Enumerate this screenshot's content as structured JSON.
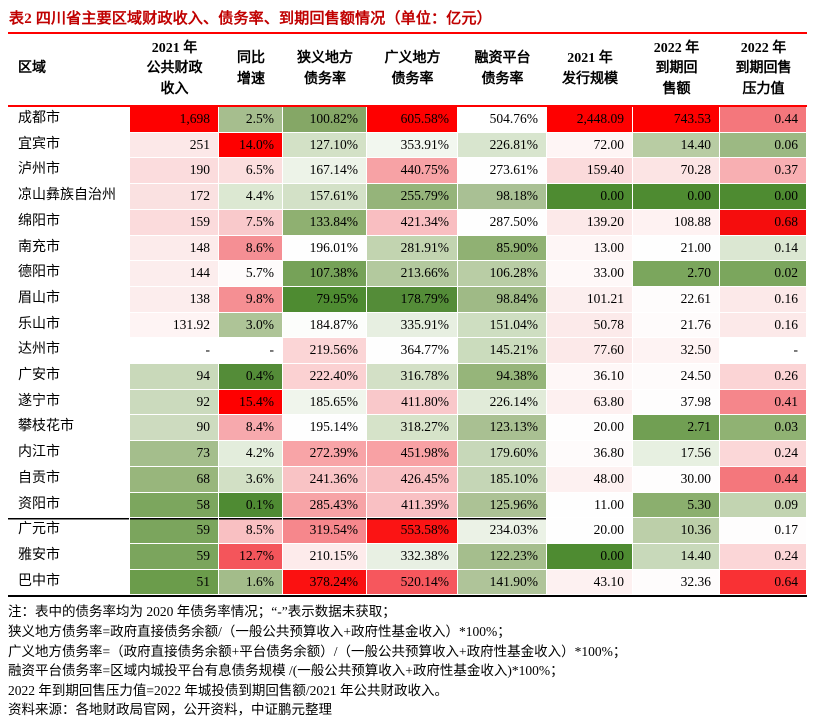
{
  "title": "表2 四川省主要区域财政收入、债务率、到期回售额情况（单位：亿元）",
  "styles": {
    "title_color": "#C00000",
    "rule_red": "#FE0000",
    "table_bottom_rule": "#000000",
    "scale_max_red": "#FE0000",
    "scale_mid_white": "#FFFFFF",
    "scale_min_green": "#4E8B31"
  },
  "table": {
    "headers": [
      {
        "label": "区域"
      },
      {
        "label": "2021 年\n公共财政\n收入"
      },
      {
        "label": "同比\n增速"
      },
      {
        "label": "狭义地方\n债务率"
      },
      {
        "label": "广义地方\n债务率"
      },
      {
        "label": "融资平台\n债务率"
      },
      {
        "label": "2021 年\n发行规模"
      },
      {
        "label": "2022 年\n到期回\n售额"
      },
      {
        "label": "2022 年\n到期回售\n压力值"
      }
    ],
    "rows": [
      {
        "region": "成都市",
        "values": [
          "1,698",
          "2.5%",
          "100.82%",
          "605.58%",
          "504.76%",
          "2,448.09",
          "743.53",
          "0.44"
        ],
        "colors": [
          "#FE0000",
          "#A6BE8E",
          "#85A766",
          "#FE0000",
          "#FFFFFF",
          "#FE0000",
          "#FE0000",
          "#F4777C"
        ]
      },
      {
        "region": "宜宾市",
        "values": [
          "251",
          "14.0%",
          "127.10%",
          "353.91%",
          "226.81%",
          "72.00",
          "14.40",
          "0.06"
        ],
        "colors": [
          "#FCE8E8",
          "#FE0000",
          "#D3E1C6",
          "#F2F7EF",
          "#D8E5CE",
          "#FEF5F5",
          "#B8CCA3",
          "#9CB983"
        ]
      },
      {
        "region": "泸州市",
        "values": [
          "190",
          "6.5%",
          "167.14%",
          "440.75%",
          "273.61%",
          "159.40",
          "70.28",
          "0.37"
        ],
        "colors": [
          "#FBDCDD",
          "#FBDEDE",
          "#EDF3E8",
          "#F7A2A5",
          "#FEFEFE",
          "#FBDADB",
          "#FCE4E4",
          "#F8AFB2"
        ]
      },
      {
        "region": "凉山彝族自治州",
        "values": [
          "172",
          "4.4%",
          "157.61%",
          "255.79%",
          "98.18%",
          "0.00",
          "0.00",
          "0.00"
        ],
        "colors": [
          "#FAE1E1",
          "#DCE8D2",
          "#D3E1C7",
          "#95B47A",
          "#A9C094",
          "#4E8B31",
          "#4E8B31",
          "#4E8B31"
        ]
      },
      {
        "region": "绵阳市",
        "values": [
          "159",
          "7.5%",
          "133.84%",
          "421.34%",
          "287.50%",
          "139.20",
          "108.88",
          "0.68"
        ],
        "colors": [
          "#FBDBDC",
          "#F9C9CB",
          "#8FB071",
          "#F9BEC1",
          "#FEFEFE",
          "#FCE9E9",
          "#FEF2F2",
          "#F50D0D"
        ]
      },
      {
        "region": "南充市",
        "values": [
          "148",
          "8.6%",
          "196.01%",
          "281.91%",
          "85.90%",
          "13.00",
          "21.00",
          "0.14"
        ],
        "colors": [
          "#FCEBEB",
          "#F58F94",
          "#FEFEFE",
          "#C2D4B0",
          "#90B173",
          "#FEF6F6",
          "#FEFEFE",
          "#DBE7D2"
        ]
      },
      {
        "region": "德阳市",
        "values": [
          "144",
          "5.7%",
          "107.38%",
          "213.66%",
          "106.28%",
          "33.00",
          "2.70",
          "0.02"
        ],
        "colors": [
          "#FCEDED",
          "#FEFBFB",
          "#76A258",
          "#B3C99E",
          "#B9CDA5",
          "#FEF8F8",
          "#7BA65D",
          "#7BA65D"
        ]
      },
      {
        "region": "眉山市",
        "values": [
          "138",
          "9.8%",
          "79.95%",
          "178.79%",
          "98.84%",
          "101.21",
          "22.61",
          "0.16"
        ],
        "colors": [
          "#FCEDED",
          "#F58F93",
          "#4E8B31",
          "#548C38",
          "#9FBA86",
          "#FCEEEE",
          "#FEFCFC",
          "#FCE9E9"
        ]
      },
      {
        "region": "乐山市",
        "values": [
          "131.92",
          "3.0%",
          "184.87%",
          "335.91%",
          "151.04%",
          "50.78",
          "21.76",
          "0.16"
        ],
        "colors": [
          "#FEF4F4",
          "#AEC497",
          "#FCFDFB",
          "#E7EFE1",
          "#CEDEC1",
          "#FCEAEA",
          "#FEFBFB",
          "#FCE9E9"
        ]
      },
      {
        "region": "达州市",
        "values": [
          "-",
          "-",
          "219.56%",
          "364.77%",
          "145.21%",
          "77.60",
          "32.50",
          "-"
        ],
        "colors": [
          "#FFFFFF",
          "#FFFFFF",
          "#FBD5D6",
          "#FEFEFE",
          "#CBDCBD",
          "#FCE9E9",
          "#FEF3F3",
          "#FFFFFF"
        ]
      },
      {
        "region": "广安市",
        "values": [
          "94",
          "0.4%",
          "222.40%",
          "316.78%",
          "94.38%",
          "36.10",
          "24.50",
          "0.26"
        ],
        "colors": [
          "#C9D9BA",
          "#548C38",
          "#FBD1D2",
          "#D3E0C6",
          "#96B57A",
          "#FEF7F7",
          "#FEFBFB",
          "#FBD4D5"
        ]
      },
      {
        "region": "遂宁市",
        "values": [
          "92",
          "15.4%",
          "185.65%",
          "411.80%",
          "226.14%",
          "63.80",
          "37.98",
          "0.41"
        ],
        "colors": [
          "#CBDABD",
          "#FE0000",
          "#F0F5EC",
          "#F9C8CA",
          "#E1EBD9",
          "#FDF0F0",
          "#FEFDFD",
          "#F5868B"
        ]
      },
      {
        "region": "攀枝花市",
        "values": [
          "90",
          "8.4%",
          "195.14%",
          "318.27%",
          "123.13%",
          "20.00",
          "2.71",
          "0.03"
        ],
        "colors": [
          "#CDDBBF",
          "#F7A9AD",
          "#FEFEFE",
          "#D6E3C9",
          "#A9C092",
          "#FEFDFD",
          "#719F53",
          "#90B273"
        ]
      },
      {
        "region": "内江市",
        "values": [
          "73",
          "4.2%",
          "272.39%",
          "451.98%",
          "179.60%",
          "36.80",
          "17.56",
          "0.24"
        ],
        "colors": [
          "#A4BE8C",
          "#E3EDDC",
          "#F8A4A7",
          "#F8A1A4",
          "#C7D8B9",
          "#FEFBFB",
          "#E7F0E1",
          "#FBD7D8"
        ]
      },
      {
        "region": "自贡市",
        "values": [
          "68",
          "3.6%",
          "241.36%",
          "426.45%",
          "185.10%",
          "48.00",
          "30.00",
          "0.44"
        ],
        "colors": [
          "#98B67C",
          "#D2E0C5",
          "#F9C3C5",
          "#F9BFC2",
          "#C5D6B6",
          "#FDF1F1",
          "#FEFDFD",
          "#F4777C"
        ]
      },
      {
        "region": "资阳市",
        "values": [
          "58",
          "0.1%",
          "285.43%",
          "411.39%",
          "125.96%",
          "11.00",
          "5.30",
          "0.09"
        ],
        "colors": [
          "#7CA65E",
          "#4F8B33",
          "#F7A3A6",
          "#F9C0C3",
          "#ACC295",
          "#FEFEFE",
          "#8BAF6E",
          "#C2D4B1"
        ]
      },
      {
        "region": "广元市",
        "values": [
          "59",
          "8.5%",
          "319.54%",
          "553.58%",
          "234.03%",
          "20.00",
          "10.36",
          "0.17"
        ],
        "colors": [
          "#7BA55D",
          "#F9C0C2",
          "#F6878C",
          "#FB1414",
          "#EBF2E6",
          "#FEFEFE",
          "#BCCFA9",
          "#FEFDFD"
        ]
      },
      {
        "region": "雅安市",
        "values": [
          "59",
          "12.7%",
          "210.15%",
          "332.38%",
          "122.23%",
          "0.00",
          "14.40",
          "0.24"
        ],
        "colors": [
          "#7BA55D",
          "#F4555B",
          "#FDEBEB",
          "#E8F0E3",
          "#A5BE8D",
          "#4E8B31",
          "#C8D9BA",
          "#FBD6D7"
        ]
      },
      {
        "region": "巴中市",
        "values": [
          "51",
          "1.6%",
          "378.24%",
          "520.14%",
          "141.90%",
          "43.10",
          "32.36",
          "0.64"
        ],
        "colors": [
          "#6B9C4B",
          "#A3BC8A",
          "#FB1111",
          "#F6575D",
          "#AFC499",
          "#FDF1F1",
          "#FEFCFC",
          "#F93134"
        ]
      }
    ]
  },
  "notes": [
    "注：表中的债务率均为 2020 年债务率情况；“-”表示数据未获取；",
    "狭义地方债务率=政府直接债务余额/（一般公共预算收入+政府性基金收入）*100%；",
    "广义地方债务率=（政府直接债务余额+平台债务余额）/（一般公共预算收入+政府性基金收入）*100%；",
    "融资平台债务率=区域内城投平台有息债务规模 /(一般公共预算收入+政府性基金收入)*100%；",
    "2022 年到期回售压力值=2022 年城投债到期回售额/2021 年公共财政收入。",
    "资料来源：各地财政局官网，公开资料，中证鹏元整理"
  ]
}
